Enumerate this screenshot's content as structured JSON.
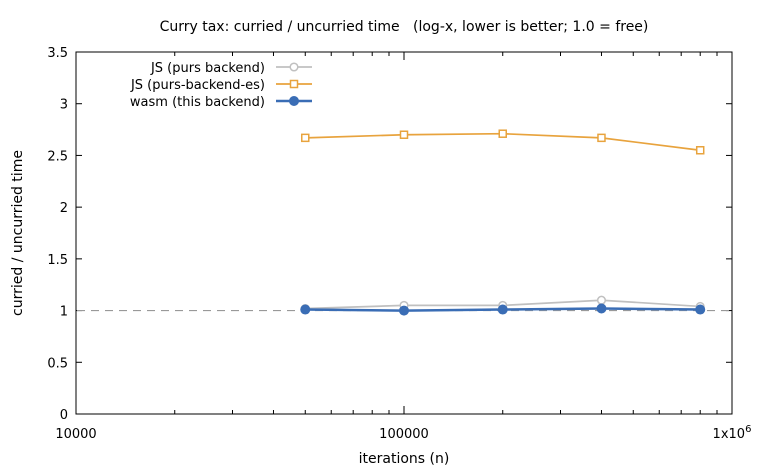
{
  "chart_data": {
    "type": "line",
    "title": "Curry tax: curried / uncurried time   (log-x, lower is better; 1.0 = free)",
    "xlabel": "iterations (n)",
    "ylabel": "curried / uncurried time",
    "x_scale": "log",
    "xlim": [
      10000,
      1000000
    ],
    "ylim": [
      0,
      3.5
    ],
    "x_ticks": [
      10000,
      100000,
      1000000
    ],
    "x_tick_labels": [
      "10000",
      "100000",
      "1x10"
    ],
    "x_tick_label_sup": "6",
    "y_ticks": [
      0,
      0.5,
      1,
      1.5,
      2,
      2.5,
      3,
      3.5
    ],
    "y_tick_labels": [
      "0",
      "0.5",
      "1",
      "1.5",
      "2",
      "2.5",
      "3",
      "3.5"
    ],
    "reference_line": {
      "y": 1.0,
      "style": "dashed",
      "color": "#999999"
    },
    "grid": false,
    "legend_position": "top-left",
    "x": [
      50000,
      100000,
      200000,
      400000,
      800000
    ],
    "series": [
      {
        "name": "JS (purs backend)",
        "color": "#c0c0c0",
        "marker": "open-circle",
        "values": [
          1.02,
          1.05,
          1.05,
          1.1,
          1.04
        ]
      },
      {
        "name": "JS (purs-backend-es)",
        "color": "#e8a33d",
        "marker": "open-square",
        "values": [
          2.67,
          2.7,
          2.71,
          2.67,
          2.55
        ]
      },
      {
        "name": "wasm (this backend)",
        "color": "#3a6db5",
        "marker": "filled-circle",
        "values": [
          1.01,
          1.0,
          1.01,
          1.02,
          1.01
        ]
      }
    ]
  }
}
